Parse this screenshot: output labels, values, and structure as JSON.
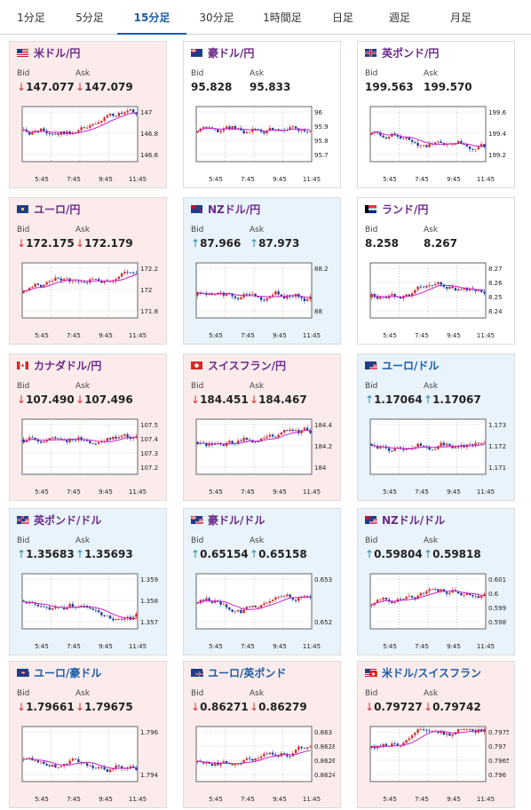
{
  "tabs": [
    {
      "label": "1分足",
      "active": false
    },
    {
      "label": "5分足",
      "active": false
    },
    {
      "label": "15分足",
      "active": true
    },
    {
      "label": "30分足",
      "active": false
    },
    {
      "label": "1時間足",
      "active": false
    },
    {
      "label": "日足",
      "active": false
    },
    {
      "label": "週足",
      "active": false
    },
    {
      "label": "月足",
      "active": false
    }
  ],
  "labels": {
    "bid": "Bid",
    "ask": "Ask"
  },
  "colors": {
    "down": "#d23030",
    "up": "#2a8aa8",
    "title_purple": "#6b2a8a",
    "title_blue": "#1a5ca8",
    "ma": "#d01ec8",
    "candle_up": "#d23030",
    "candle_down": "#1c3f9c"
  },
  "xticks": [
    "5:45",
    "7:45",
    "9:45",
    "11:45"
  ],
  "cards": [
    {
      "name": "usd-jpy",
      "title": "米ドル/円",
      "flag": "us",
      "title_color": "purple",
      "state": "down",
      "bid": "147.077",
      "ask": "147.079",
      "dir": "down",
      "yticks": [
        "147",
        "146.8",
        "146.6"
      ]
    },
    {
      "name": "aud-jpy",
      "title": "豪ドル/円",
      "flag": "au",
      "title_color": "purple",
      "state": "neutral",
      "bid": "95.828",
      "ask": "95.833",
      "dir": "none",
      "yticks": [
        "96",
        "95.9",
        "95.8",
        "95.7"
      ]
    },
    {
      "name": "gbp-jpy",
      "title": "英ポンド/円",
      "flag": "uk",
      "title_color": "purple",
      "state": "neutral",
      "bid": "199.563",
      "ask": "199.570",
      "dir": "none",
      "yticks": [
        "199.6",
        "199.4",
        "199.2"
      ]
    },
    {
      "name": "eur-jpy",
      "title": "ユーロ/円",
      "flag": "eu",
      "title_color": "purple",
      "state": "down",
      "bid": "172.175",
      "ask": "172.179",
      "dir": "down",
      "yticks": [
        "172.2",
        "172",
        "171.8"
      ]
    },
    {
      "name": "nzd-jpy",
      "title": "NZドル/円",
      "flag": "nz",
      "title_color": "purple",
      "state": "up",
      "bid": "87.966",
      "ask": "87.973",
      "dir": "up",
      "yticks": [
        "88.2",
        "88"
      ]
    },
    {
      "name": "zar-jpy",
      "title": "ランド/円",
      "flag": "za",
      "title_color": "purple",
      "state": "neutral",
      "bid": "8.258",
      "ask": "8.267",
      "dir": "none",
      "yticks": [
        "8.27",
        "8.26",
        "8.25",
        "8.24"
      ]
    },
    {
      "name": "cad-jpy",
      "title": "カナダドル/円",
      "flag": "ca",
      "title_color": "purple",
      "state": "down",
      "bid": "107.490",
      "ask": "107.496",
      "dir": "down",
      "yticks": [
        "107.5",
        "107.4",
        "107.3",
        "107.2"
      ]
    },
    {
      "name": "chf-jpy",
      "title": "スイスフラン/円",
      "flag": "ch",
      "title_color": "purple",
      "state": "down",
      "bid": "184.451",
      "ask": "184.467",
      "dir": "down",
      "yticks": [
        "184.4",
        "184.2",
        "184"
      ]
    },
    {
      "name": "eur-usd",
      "title": "ユーロ/ドル",
      "flag": "eu",
      "flag2": "us",
      "title_color": "blue",
      "state": "up",
      "bid": "1.17064",
      "ask": "1.17067",
      "dir": "up",
      "yticks": [
        "1.173",
        "1.172",
        "1.171"
      ]
    },
    {
      "name": "gbp-usd",
      "title": "英ポンド/ドル",
      "flag": "uk",
      "flag2": "us",
      "title_color": "purple",
      "state": "up",
      "bid": "1.35683",
      "ask": "1.35693",
      "dir": "up",
      "yticks": [
        "1.359",
        "1.358",
        "1.357"
      ]
    },
    {
      "name": "aud-usd",
      "title": "豪ドル/ドル",
      "flag": "au",
      "flag2": "us",
      "title_color": "purple",
      "state": "up",
      "bid": "0.65154",
      "ask": "0.65158",
      "dir": "up",
      "yticks": [
        "0.653",
        "0.652"
      ]
    },
    {
      "name": "nzd-usd",
      "title": "NZドル/ドル",
      "flag": "nz",
      "flag2": "us",
      "title_color": "purple",
      "state": "up",
      "bid": "0.59804",
      "ask": "0.59818",
      "dir": "up",
      "yticks": [
        "0.601",
        "0.6",
        "0.599",
        "0.598"
      ]
    },
    {
      "name": "eur-aud",
      "title": "ユーロ/豪ドル",
      "flag": "eu",
      "flag2": "au",
      "title_color": "blue",
      "state": "down",
      "bid": "1.79661",
      "ask": "1.79675",
      "dir": "down",
      "yticks": [
        "1.796",
        "1.794"
      ]
    },
    {
      "name": "eur-gbp",
      "title": "ユーロ/英ポンド",
      "flag": "eu",
      "flag2": "uk",
      "title_color": "blue",
      "state": "down",
      "bid": "0.86271",
      "ask": "0.86279",
      "dir": "down",
      "yticks": [
        "0.863",
        "0.8628",
        "0.8626",
        "0.8624"
      ]
    },
    {
      "name": "usd-chf",
      "title": "米ドル/スイスフラン",
      "flag": "us",
      "flag2": "ch",
      "title_color": "blue",
      "state": "down",
      "bid": "0.79727",
      "ask": "0.79742",
      "dir": "down",
      "yticks": [
        "0.7975",
        "0.797",
        "0.7965",
        "0.796"
      ]
    }
  ]
}
